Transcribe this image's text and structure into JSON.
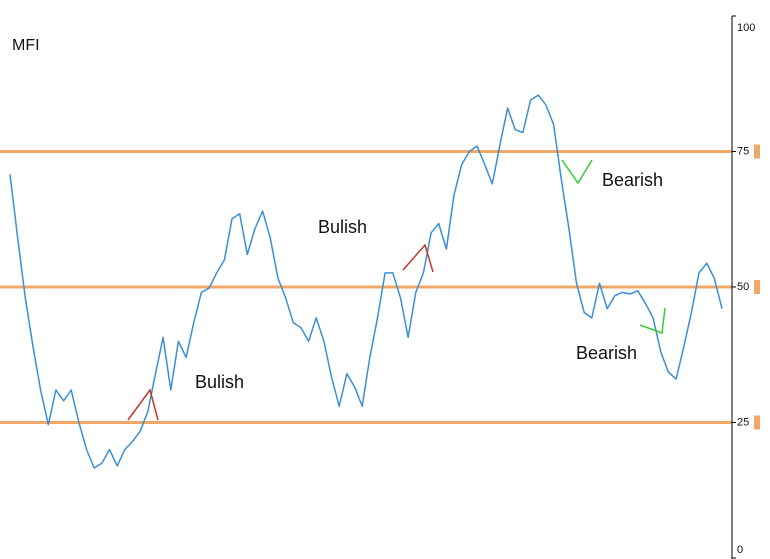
{
  "chart_data": {
    "type": "line",
    "title": "MFI",
    "series": [
      {
        "name": "MFI",
        "color": "#3a8fd6",
        "values": [
          70.8,
          59,
          48,
          39,
          31,
          24.6,
          31,
          29,
          31,
          25,
          20,
          16.6,
          17.5,
          20,
          17,
          20,
          21.5,
          23.4,
          27,
          34,
          40.7,
          31,
          40,
          37,
          43.4,
          49,
          49.8,
          52.6,
          55,
          62.6,
          63.5,
          56,
          60.8,
          64,
          59,
          51.6,
          48,
          43.4,
          42.5,
          40,
          44.3,
          40,
          33.4,
          28,
          34,
          31.6,
          28,
          37,
          44.3,
          52.6,
          52.6,
          48,
          40.7,
          49,
          52.6,
          60,
          61.7,
          57,
          67,
          72.6,
          75,
          76,
          72.6,
          69,
          76.3,
          83,
          79,
          78.5,
          84.5,
          85.4,
          83.6,
          80,
          70,
          60.8,
          50.7,
          45.3,
          44.3,
          50.7,
          46,
          48.4,
          49,
          48.7,
          49.3,
          47,
          44.3,
          38,
          34.3,
          33,
          38.9,
          45.3,
          52.6,
          54.4,
          51.6,
          46
        ]
      }
    ],
    "ylim": [
      0,
      100
    ],
    "yticks": [
      0,
      25,
      50,
      75,
      100
    ],
    "levels": [
      25,
      50,
      75
    ],
    "level_color": "#f0a868",
    "annotations": [
      "Bulish",
      "Bulish",
      "Bearish",
      "Bearish"
    ]
  }
}
